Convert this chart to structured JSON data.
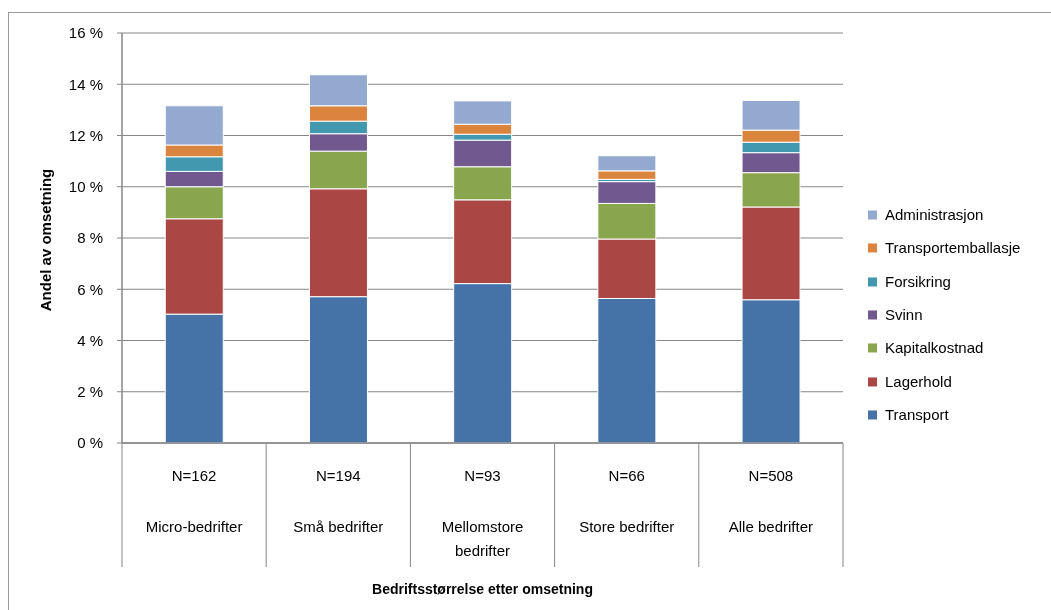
{
  "chart_data": {
    "type": "bar",
    "stacked": true,
    "ylabel": "Andel av omsetning",
    "xlabel": "Bedriftsstørrelse etter omsetning",
    "categories": [
      "Micro-bedrifter",
      "Små bedrifter",
      "Mellomstore bedrifter",
      "Store bedrifter",
      "Alle bedrifter"
    ],
    "annotations": [
      "N=162",
      "N=194",
      "N=93",
      "N=66",
      "N=508"
    ],
    "series": [
      {
        "name": "Transport",
        "color": "#4572a7",
        "values": [
          5.03,
          5.71,
          6.22,
          5.64,
          5.59
        ]
      },
      {
        "name": "Lagerhold",
        "color": "#aa4643",
        "values": [
          3.72,
          4.21,
          3.27,
          2.32,
          3.62
        ]
      },
      {
        "name": "Kapitalkostnad",
        "color": "#89a54e",
        "values": [
          1.25,
          1.47,
          1.29,
          1.39,
          1.34
        ]
      },
      {
        "name": "Svinn",
        "color": "#71588f",
        "values": [
          0.6,
          0.68,
          1.04,
          0.85,
          0.78
        ]
      },
      {
        "name": "Forsikring",
        "color": "#4198af",
        "values": [
          0.57,
          0.49,
          0.23,
          0.09,
          0.41
        ]
      },
      {
        "name": "Transportemballasje",
        "color": "#db843d",
        "values": [
          0.46,
          0.6,
          0.39,
          0.33,
          0.47
        ]
      },
      {
        "name": "Administrasjon",
        "color": "#93a9cf",
        "values": [
          1.53,
          1.21,
          0.91,
          0.59,
          1.16
        ]
      }
    ],
    "ylim": [
      0,
      16
    ],
    "yticks": [
      {
        "value": 0,
        "label": "0 %"
      },
      {
        "value": 2,
        "label": "2 %"
      },
      {
        "value": 4,
        "label": "4 %"
      },
      {
        "value": 6,
        "label": "6 %"
      },
      {
        "value": 8,
        "label": "8 %"
      },
      {
        "value": 10,
        "label": "10 %"
      },
      {
        "value": 12,
        "label": "12 %"
      },
      {
        "value": 14,
        "label": "14 %"
      },
      {
        "value": 16,
        "label": "16 %"
      }
    ],
    "grid": "y",
    "legend": "right"
  }
}
